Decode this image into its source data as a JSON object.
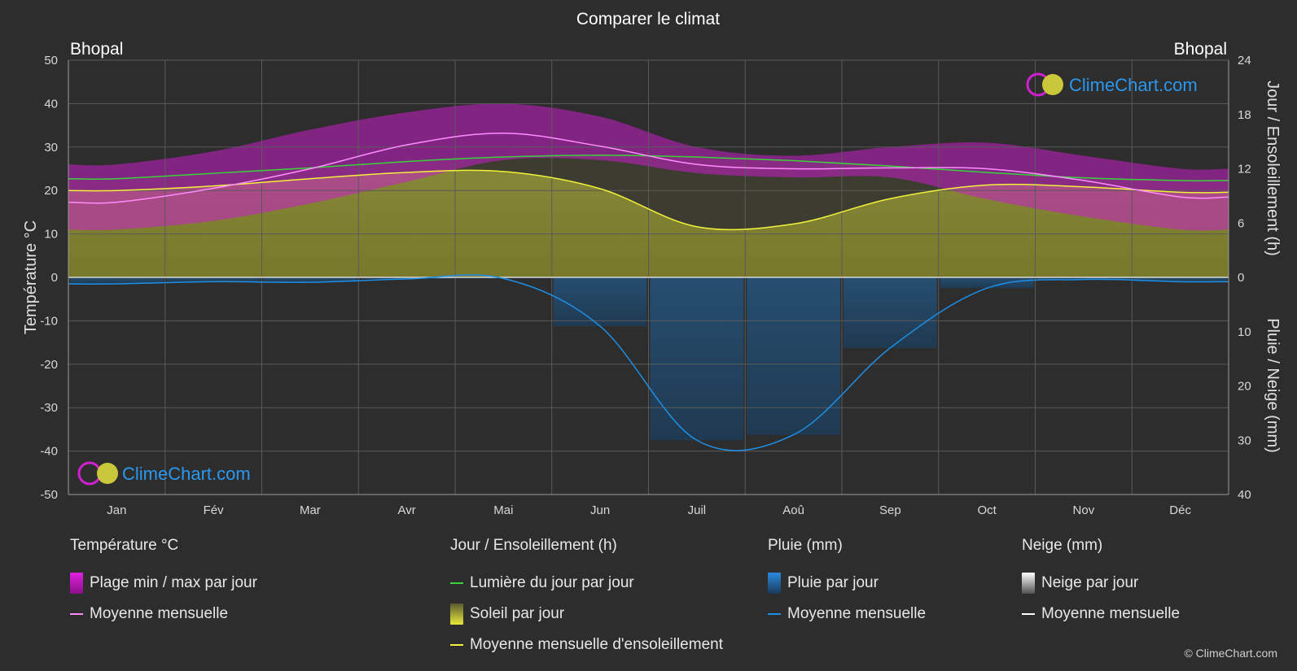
{
  "title": "Comparer le climat",
  "location_left": "Bhopal",
  "location_right": "Bhopal",
  "watermark": "ClimeChart.com",
  "copyright": "© ClimeChart.com",
  "colors": {
    "background": "#2d2d2d",
    "temp_range": "#c81ec8",
    "temp_mean": "#ff8cff",
    "daylight": "#39d339",
    "sunshine_fill": "#a7a72a",
    "sunshine_mean": "#f2f23a",
    "rain": "#1d5c93",
    "rain_mean": "#1e8fe6",
    "snow_mean": "#ffffff"
  },
  "legend": {
    "temperature": {
      "heading": "Température °C",
      "range_label": "Plage min / max par jour",
      "mean_label": "Moyenne mensuelle"
    },
    "sun": {
      "heading": "Jour / Ensoleillement (h)",
      "daylight_label": "Lumière du jour par jour",
      "sunshine_label": "Soleil par jour",
      "sunshine_mean_label": "Moyenne mensuelle d'ensoleillement"
    },
    "rain": {
      "heading": "Pluie (mm)",
      "daily_label": "Pluie par jour",
      "mean_label": "Moyenne mensuelle"
    },
    "snow": {
      "heading": "Neige (mm)",
      "daily_label": "Neige par jour",
      "mean_label": "Moyenne mensuelle"
    }
  },
  "chart_data": {
    "type": "line",
    "months": [
      "Jan",
      "Fév",
      "Mar",
      "Avr",
      "Mai",
      "Jun",
      "Juil",
      "Aoû",
      "Sep",
      "Oct",
      "Nov",
      "Déc"
    ],
    "left_axis": {
      "label": "Température °C",
      "min": -50,
      "max": 50,
      "ticks": [
        50,
        40,
        30,
        20,
        10,
        0,
        -10,
        -20,
        -30,
        -40,
        -50
      ]
    },
    "right_axis_top": {
      "label": "Jour / Ensoleillement (h)",
      "min": 0,
      "max": 24,
      "ticks": [
        24,
        18,
        12,
        6,
        0
      ]
    },
    "right_axis_bottom": {
      "label": "Pluie / Neige (mm)",
      "min": 0,
      "max": 40,
      "ticks": [
        0,
        10,
        20,
        30,
        40
      ]
    },
    "series": [
      {
        "name": "Plage min / max par jour",
        "unit": "°C",
        "min": [
          11,
          13,
          17,
          22,
          27,
          27,
          24,
          23,
          23,
          18,
          14,
          11
        ],
        "max": [
          26,
          29,
          34,
          38,
          40,
          37,
          30,
          28,
          30,
          31,
          28,
          25
        ]
      },
      {
        "name": "Moyenne mensuelle",
        "unit": "°C",
        "values": [
          17.3,
          20.5,
          25.0,
          30.5,
          33.2,
          30.2,
          26.0,
          25.0,
          25.2,
          25.0,
          22.3,
          18.5
        ]
      },
      {
        "name": "Lumière du jour par jour",
        "unit": "h",
        "values": [
          10.9,
          11.5,
          12.1,
          12.8,
          13.3,
          13.5,
          13.3,
          12.9,
          12.3,
          11.6,
          11.0,
          10.7
        ]
      },
      {
        "name": "Moyenne mensuelle d'ensoleillement",
        "unit": "h",
        "values": [
          9.6,
          10.1,
          10.9,
          11.6,
          11.7,
          9.8,
          5.6,
          5.9,
          8.7,
          10.2,
          10.0,
          9.4
        ]
      },
      {
        "name": "Moyenne mensuelle",
        "unit": "mm",
        "values": [
          1.2,
          0.8,
          0.9,
          0.3,
          0.2,
          9.0,
          30.0,
          29.0,
          13.0,
          2.0,
          0.4,
          0.8
        ]
      }
    ],
    "grid": true,
    "legend_position": "bottom"
  }
}
